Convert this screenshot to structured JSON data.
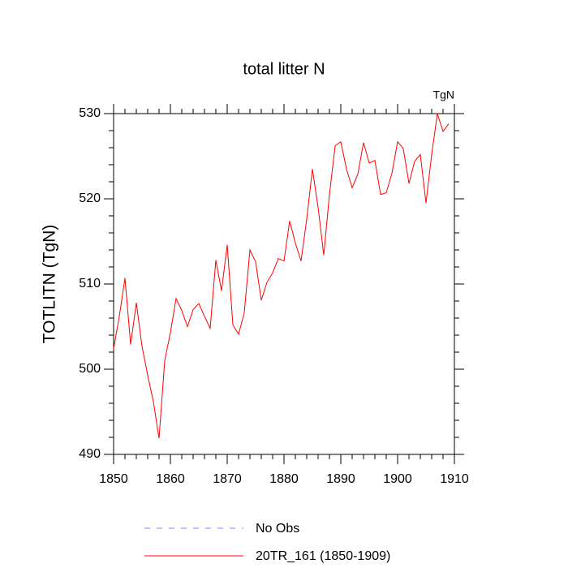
{
  "chart_data": {
    "type": "line",
    "title": "total litter N",
    "ylabel": "TOTLITN  (TgN)",
    "units_label": "TgN",
    "x": [
      1850,
      1851,
      1852,
      1853,
      1854,
      1855,
      1856,
      1857,
      1858,
      1859,
      1860,
      1861,
      1862,
      1863,
      1864,
      1865,
      1866,
      1867,
      1868,
      1869,
      1870,
      1871,
      1872,
      1873,
      1874,
      1875,
      1876,
      1877,
      1878,
      1879,
      1880,
      1881,
      1882,
      1883,
      1884,
      1885,
      1886,
      1887,
      1888,
      1889,
      1890,
      1891,
      1892,
      1893,
      1894,
      1895,
      1896,
      1897,
      1898,
      1899,
      1900,
      1901,
      1902,
      1903,
      1904,
      1905,
      1906,
      1907,
      1908,
      1909
    ],
    "series": [
      {
        "name": "20TR_161 (1850-1909)",
        "color": "#ff0000",
        "values": [
          502.4,
          506.2,
          510.7,
          502.9,
          507.8,
          502.7,
          499.3,
          496.2,
          491.9,
          501.0,
          504.3,
          508.3,
          506.9,
          505.0,
          507.0,
          507.7,
          506.2,
          504.8,
          512.8,
          509.2,
          514.6,
          505.2,
          504.1,
          506.6,
          514.0,
          512.6,
          508.1,
          510.2,
          511.3,
          513.0,
          512.7,
          517.4,
          514.8,
          512.7,
          517.6,
          523.5,
          519.0,
          513.4,
          520.5,
          526.2,
          526.7,
          523.5,
          521.3,
          522.9,
          526.6,
          524.2,
          524.5,
          520.5,
          520.7,
          523.0,
          526.7,
          525.9,
          521.8,
          524.4,
          525.2,
          519.5,
          525.2,
          530.0,
          527.9,
          528.8
        ]
      }
    ],
    "reference": {
      "name": "No Obs",
      "color": "#8080ff",
      "dashed": true
    },
    "xlim": [
      1850,
      1910
    ],
    "xticks": [
      1850,
      1860,
      1870,
      1880,
      1890,
      1900,
      1910
    ],
    "xminor": 2,
    "ylim": [
      490,
      530
    ],
    "yticks": [
      490,
      500,
      510,
      520,
      530
    ],
    "yminor": 2
  }
}
